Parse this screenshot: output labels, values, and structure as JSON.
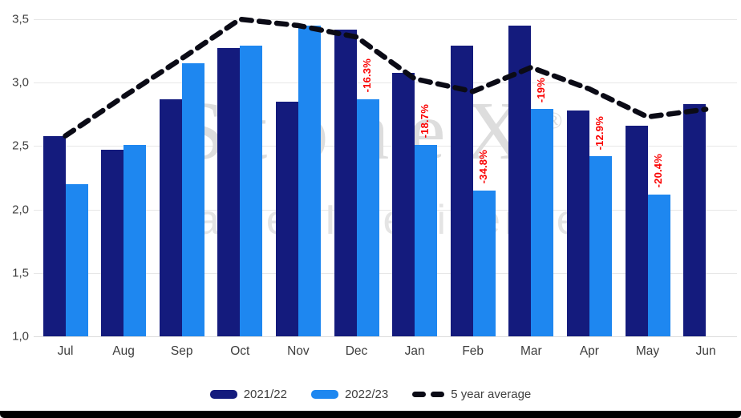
{
  "watermark": {
    "brand": "StoneX",
    "registered": "®",
    "tagline": "Market Intelligence"
  },
  "chart_data": {
    "type": "bar",
    "title": "",
    "xlabel": "",
    "ylabel": "",
    "categories": [
      "Jul",
      "Aug",
      "Sep",
      "Oct",
      "Nov",
      "Dec",
      "Jan",
      "Feb",
      "Mar",
      "Apr",
      "May",
      "Jun"
    ],
    "series": [
      {
        "name": "2021/22",
        "kind": "bar",
        "color": "#141b7d",
        "values": [
          2.58,
          2.47,
          2.87,
          3.27,
          2.85,
          3.42,
          3.08,
          3.29,
          3.45,
          2.78,
          2.66,
          2.83
        ]
      },
      {
        "name": "2022/23",
        "kind": "bar",
        "color": "#1e87f0",
        "values": [
          2.2,
          2.51,
          3.15,
          3.29,
          3.45,
          2.87,
          2.51,
          2.15,
          2.79,
          2.42,
          2.12,
          null
        ]
      },
      {
        "name": "5 year average",
        "kind": "dashed_line",
        "color": "#0b0b16",
        "values": [
          2.58,
          2.89,
          3.19,
          3.5,
          3.45,
          3.36,
          3.03,
          2.93,
          3.12,
          2.95,
          2.73,
          2.79
        ]
      }
    ],
    "pct_change_labels": [
      null,
      null,
      null,
      null,
      null,
      "-16.3%",
      "-18.7%",
      "-34.8%",
      "-19%",
      "-12.9%",
      "-20.4%",
      null
    ],
    "pct_label_color": "#fa0000",
    "yticks": [
      {
        "label": "3,5",
        "value": 3.5
      },
      {
        "label": "3,0",
        "value": 3.0
      },
      {
        "label": "2,5",
        "value": 2.5
      },
      {
        "label": "2,0",
        "value": 2.0
      },
      {
        "label": "1,5",
        "value": 1.5
      },
      {
        "label": "1,0",
        "value": 1.0
      }
    ],
    "ylim": [
      1.0,
      3.5
    ],
    "grid": true,
    "legend_position": "bottom"
  }
}
